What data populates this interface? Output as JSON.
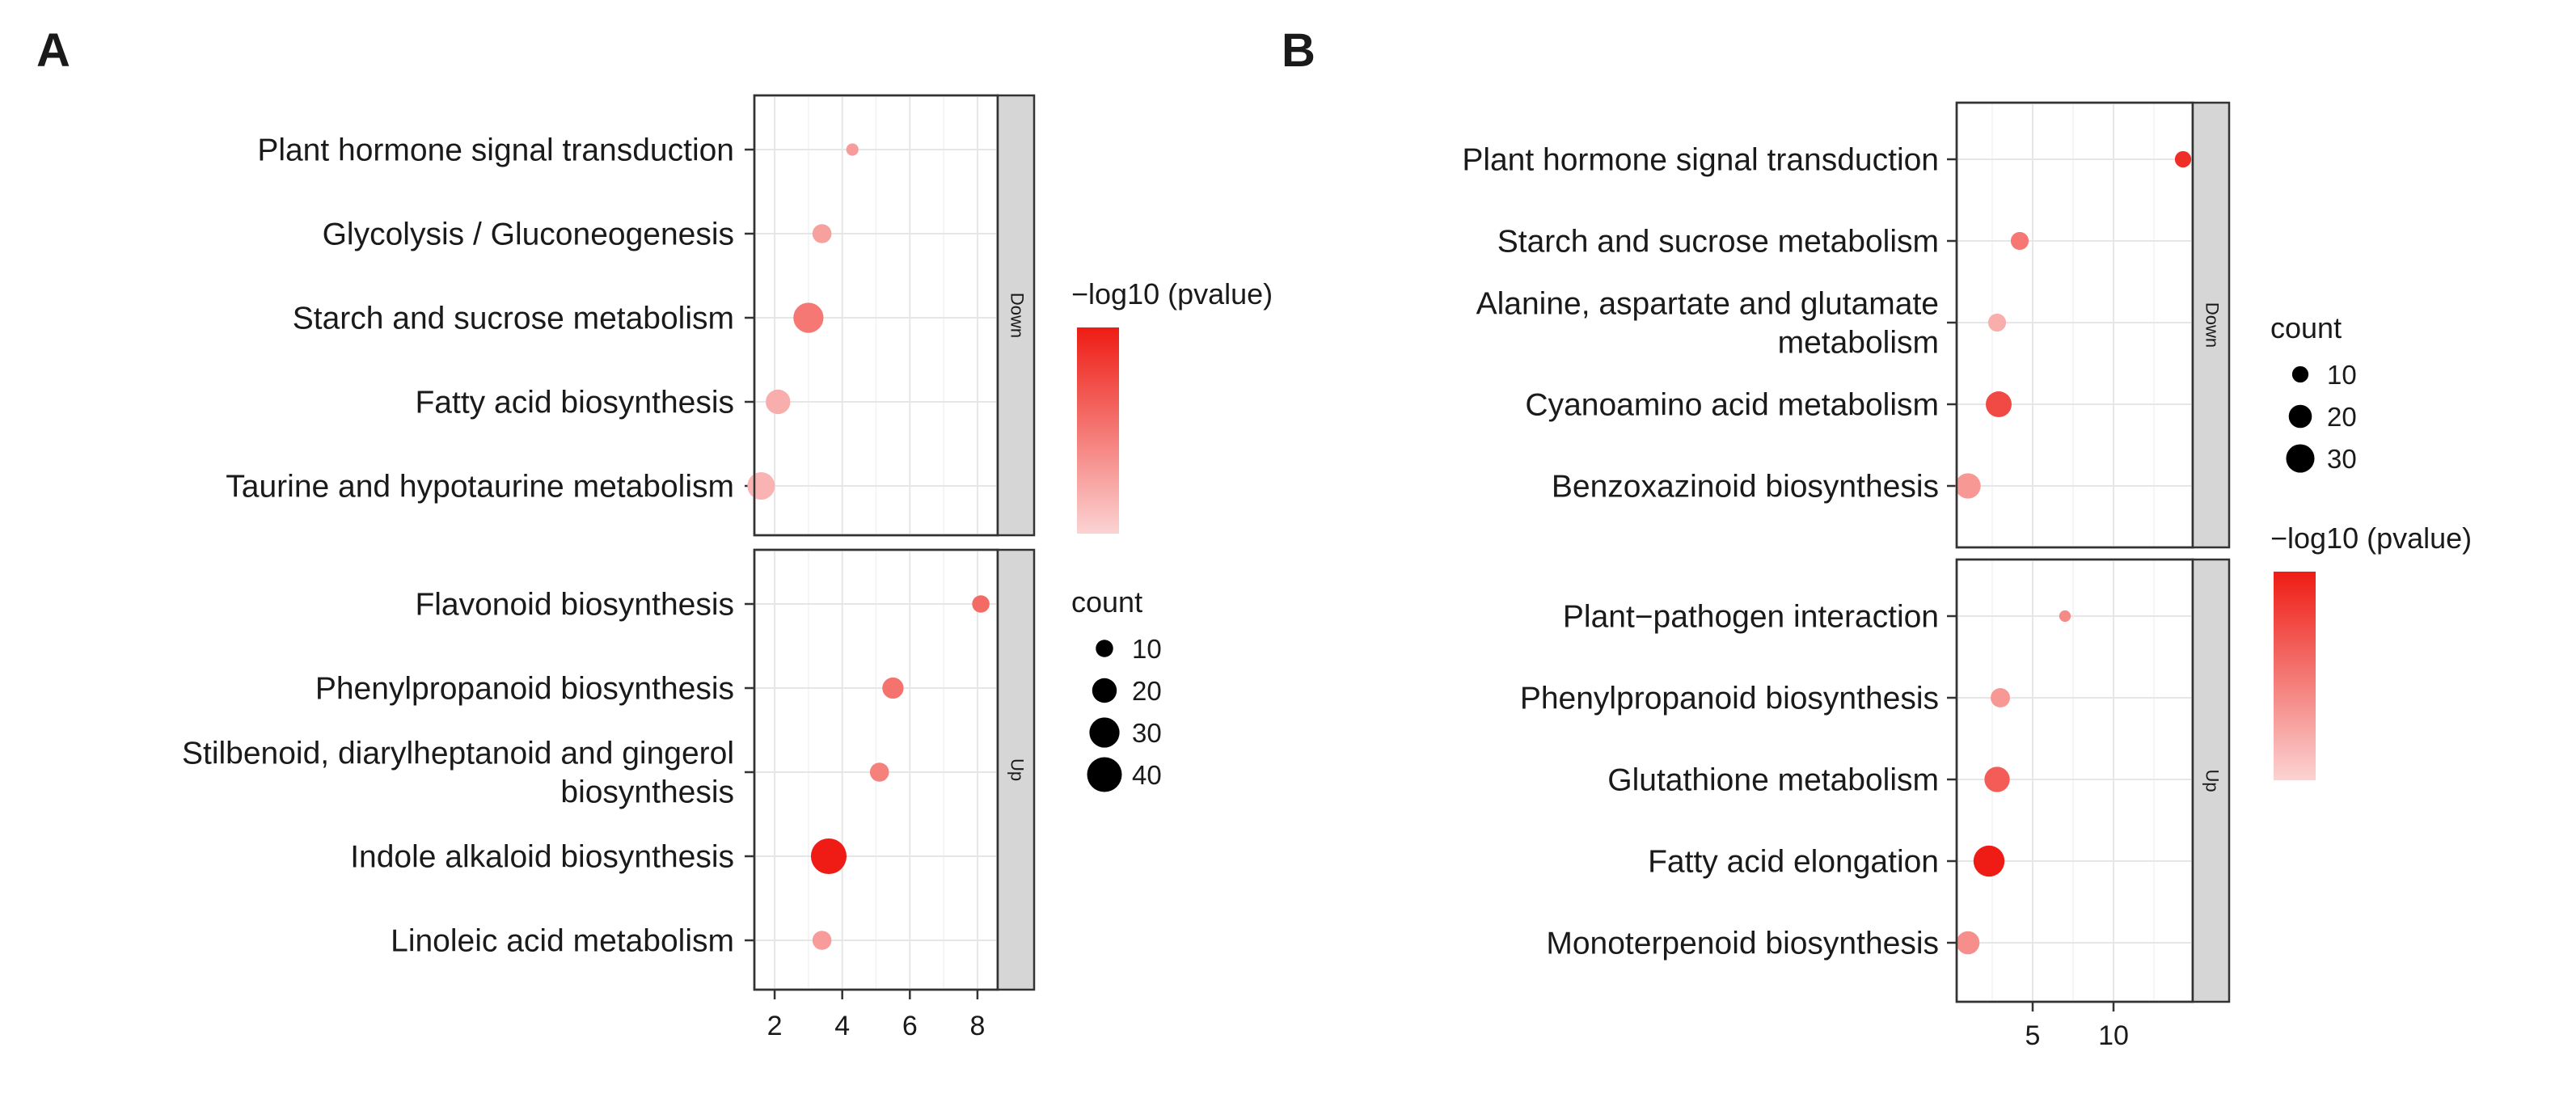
{
  "chart_data": [
    {
      "type": "scatter",
      "panel_label": "A",
      "xlabel": "",
      "ylabel": "",
      "xlim": [
        1.4,
        8.6
      ],
      "x_ticks": [
        2,
        4,
        6,
        8
      ],
      "x_tick_labels": [
        "2",
        "4",
        "6",
        "8"
      ],
      "facets": [
        {
          "name": "Down",
          "categories": [
            [
              "Plant hormone signal transduction"
            ],
            [
              "Glycolysis / Gluconeogenesis"
            ],
            [
              "Starch and sucrose metabolism"
            ],
            [
              "Fatty acid biosynthesis"
            ],
            [
              "Taurine and hypotaurine metabolism"
            ]
          ],
          "points": [
            {
              "x": 4.3,
              "count": 5,
              "neg_log10_p": 1.2
            },
            {
              "x": 3.4,
              "count": 12,
              "neg_log10_p": 1.1
            },
            {
              "x": 3.0,
              "count": 30,
              "neg_log10_p": 2.0
            },
            {
              "x": 2.1,
              "count": 20,
              "neg_log10_p": 0.8
            },
            {
              "x": 1.6,
              "count": 25,
              "neg_log10_p": 0.7
            }
          ]
        },
        {
          "name": "Up",
          "categories": [
            [
              "Flavonoid biosynthesis"
            ],
            [
              "Phenylpropanoid biosynthesis"
            ],
            [
              "Stilbenoid, diarylheptanoid and gingerol",
              "biosynthesis"
            ],
            [
              "Indole alkaloid biosynthesis"
            ],
            [
              "Linoleic acid metabolism"
            ]
          ],
          "points": [
            {
              "x": 8.1,
              "count": 10,
              "neg_log10_p": 2.3
            },
            {
              "x": 5.5,
              "count": 15,
              "neg_log10_p": 2.1
            },
            {
              "x": 5.1,
              "count": 12,
              "neg_log10_p": 1.8
            },
            {
              "x": 3.6,
              "count": 42,
              "neg_log10_p": 4.0
            },
            {
              "x": 3.4,
              "count": 12,
              "neg_log10_p": 1.2
            }
          ]
        }
      ],
      "color_scale": {
        "title": "−log10 (pvalue)",
        "min": 0,
        "max": 4,
        "low_color": "#fbd3d3",
        "high_color": "#ee1c14"
      },
      "size_legend": {
        "title": "count",
        "entries": [
          10,
          20,
          30,
          40
        ],
        "entry_labels": [
          "10",
          "20",
          "30",
          "40"
        ],
        "color": "#000000"
      }
    },
    {
      "type": "scatter",
      "panel_label": "B",
      "xlabel": "",
      "ylabel": "",
      "xlim": [
        0.3,
        14.9
      ],
      "x_ticks": [
        5,
        10
      ],
      "x_tick_labels": [
        "5",
        "10"
      ],
      "facets": [
        {
          "name": "Down",
          "categories": [
            [
              "Plant hormone signal transduction"
            ],
            [
              "Starch and sucrose metabolism"
            ],
            [
              "Alanine, aspartate and glutamate",
              "metabolism"
            ],
            [
              "Cyanoamino acid metabolism"
            ],
            [
              "Benzoxazinoid biosynthesis"
            ]
          ],
          "points": [
            {
              "x": 14.3,
              "count": 10,
              "neg_log10_p": 3.6
            },
            {
              "x": 4.2,
              "count": 12,
              "neg_log10_p": 2.0
            },
            {
              "x": 2.8,
              "count": 12,
              "neg_log10_p": 0.8
            },
            {
              "x": 2.9,
              "count": 25,
              "neg_log10_p": 3.0
            },
            {
              "x": 1.0,
              "count": 24,
              "neg_log10_p": 1.3
            }
          ]
        },
        {
          "name": "Up",
          "categories": [
            [
              "Plant−pathogen interaction"
            ],
            [
              "Phenylpropanoid biosynthesis"
            ],
            [
              "Glutathione metabolism"
            ],
            [
              "Fatty acid elongation"
            ],
            [
              "Monoterpenoid biosynthesis"
            ]
          ],
          "points": [
            {
              "x": 7.0,
              "count": 5,
              "neg_log10_p": 1.6
            },
            {
              "x": 3.0,
              "count": 14,
              "neg_log10_p": 1.3
            },
            {
              "x": 2.8,
              "count": 24,
              "neg_log10_p": 2.6
            },
            {
              "x": 2.3,
              "count": 36,
              "neg_log10_p": 4.0
            },
            {
              "x": 1.0,
              "count": 20,
              "neg_log10_p": 1.5
            }
          ]
        }
      ],
      "color_scale": {
        "title": "−log10 (pvalue)",
        "min": 0,
        "max": 4,
        "low_color": "#fbd3d3",
        "high_color": "#ee1c14"
      },
      "size_legend": {
        "title": "count",
        "entries": [
          10,
          20,
          30
        ],
        "entry_labels": [
          "10",
          "20",
          "30"
        ],
        "color": "#000000"
      }
    }
  ]
}
